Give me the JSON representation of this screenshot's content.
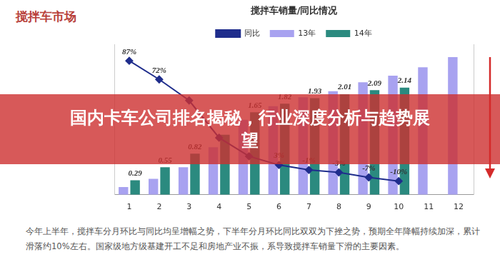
{
  "header": "搅拌车市场",
  "banner": "国内卡车公司排名揭秘，行业深度分析与趋势展望",
  "note": "今年上半年，搅拌车分月环比与同比均呈增幅之势，下半年分月环比同比双双为下挫之势，预期全年降幅持续加深，累计滑落约10%左右。国家级地方级基建开工不足和房地产业不振，系导致搅拌车销量下滑的主要因素。",
  "chart_data": {
    "type": "bar",
    "title": "搅拌车销量/同比情况",
    "categories": [
      "1",
      "2",
      "3",
      "4",
      "5",
      "6",
      "7",
      "8",
      "9",
      "10",
      "11",
      "12"
    ],
    "series": [
      {
        "name": "13年",
        "type": "bar",
        "color": "#a8a2f0",
        "values": [
          0.155,
          0.32,
          0.55,
          0.95,
          1.5,
          1.77,
          1.95,
          2.07,
          2.25,
          2.38,
          2.55,
          2.75
        ]
      },
      {
        "name": "14年",
        "type": "bar",
        "color": "#2b8a7f",
        "data_labels": true,
        "values": [
          0.29,
          0.55,
          0.82,
          1.2,
          1.65,
          1.82,
          1.93,
          2.01,
          2.09,
          2.14,
          null,
          null
        ],
        "value_labels": [
          "0.29",
          "0.55",
          "0.82",
          null,
          "1.65",
          "1.82",
          "1.93",
          "2.01",
          "2.09",
          "2.14",
          null,
          null
        ]
      },
      {
        "name": "同比",
        "type": "line",
        "axis": "y2",
        "color": "#1f2d8c",
        "marker": "diamond",
        "data_labels": true,
        "values": [
          87,
          72,
          55,
          25,
          10,
          3,
          -1,
          -3,
          -7,
          -10,
          null,
          null
        ],
        "value_labels": [
          "87%",
          "72%",
          null,
          null,
          null,
          "3%",
          "-1%",
          "-3%",
          "-7%",
          "-10%",
          null,
          null
        ]
      }
    ],
    "ylim": [
      0,
      3
    ],
    "y2lim": [
      -21,
      100
    ],
    "tick_labels": "x",
    "grid": false,
    "legend": "top"
  }
}
